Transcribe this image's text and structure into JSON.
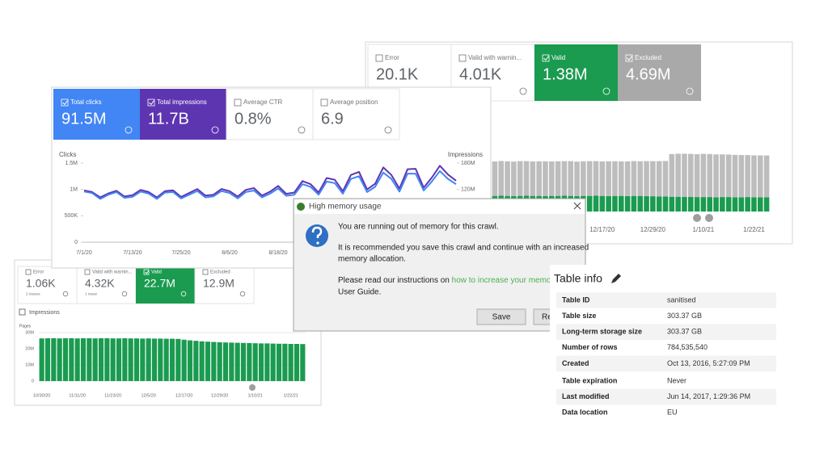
{
  "index_coverage": {
    "tabs": [
      {
        "label": "Error",
        "value": "20.1K"
      },
      {
        "label": "Valid with warnin...",
        "value": "4.01K"
      },
      {
        "label": "Valid",
        "value": "1.38M",
        "color": "#1a9b50"
      },
      {
        "label": "Excluded",
        "value": "4.69M",
        "color": "#a9a9a9"
      }
    ],
    "chart": {
      "type": "bar",
      "categories": [
        null,
        null,
        null,
        null,
        null,
        null,
        null,
        null,
        null,
        null,
        null,
        null,
        null,
        null,
        null,
        null,
        null,
        "12/17/20",
        null,
        null,
        null,
        null,
        null,
        null,
        null,
        "12/29/20",
        null,
        null,
        null,
        null,
        null,
        null,
        null,
        "1/10/21",
        null,
        null,
        null,
        null,
        null,
        null,
        null,
        "1/22/21",
        null,
        null
      ],
      "series": [
        {
          "color": "#1a9b50",
          "values": [
            0.95,
            0.96,
            0.95,
            0.94,
            0.95,
            0.96,
            0.95,
            0.95,
            0.94,
            0.95,
            0.95,
            0.96,
            0.95,
            0.94,
            0.95,
            0.95,
            0.96,
            0.95,
            0.94,
            0.95,
            0.95,
            0.94,
            0.95,
            0.95,
            0.94,
            0.93,
            0.92,
            0.92,
            0.9,
            0.9,
            0.89,
            0.89,
            0.88,
            0.88,
            0.88,
            0.87,
            0.88,
            0.88,
            0.87,
            0.87,
            0.88,
            0.87,
            0.87,
            0.87
          ]
        },
        {
          "color": "#bdbdbd",
          "values": [
            2.1,
            2.12,
            2.11,
            2.1,
            2.12,
            2.11,
            2.1,
            2.11,
            2.12,
            2.1,
            2.11,
            2.11,
            2.12,
            2.1,
            2.11,
            2.12,
            2.11,
            2.1,
            2.12,
            2.11,
            2.1,
            2.11,
            2.12,
            2.11,
            2.13,
            2.14,
            2.15,
            2.16,
            2.6,
            2.62,
            2.63,
            2.62,
            2.61,
            2.63,
            2.62,
            2.61,
            2.6,
            2.59,
            2.58,
            2.57,
            2.56,
            2.55,
            2.55,
            2.54
          ]
        }
      ],
      "ylim": [
        0,
        6
      ]
    }
  },
  "coverage_small": {
    "tabs": [
      {
        "label": "Error",
        "value": "1.06K",
        "detail": "2 issues"
      },
      {
        "label": "Valid with warnin...",
        "value": "4.32K",
        "detail": "1 issue"
      },
      {
        "label": "Valid",
        "value": "22.7M",
        "color": "#1a9b50"
      },
      {
        "label": "Excluded",
        "value": "12.9M"
      }
    ],
    "checkbox": "Impressions",
    "chart": {
      "type": "bar",
      "y_label": "Pages",
      "categories": [
        "10/30/20",
        null,
        null,
        null,
        null,
        null,
        "11/11/20",
        null,
        null,
        null,
        null,
        null,
        "11/23/20",
        null,
        null,
        null,
        null,
        null,
        "12/5/20",
        null,
        null,
        null,
        null,
        null,
        "12/17/20",
        null,
        null,
        null,
        null,
        null,
        "12/29/20",
        null,
        null,
        null,
        null,
        null,
        "1/10/21",
        null,
        null,
        null,
        null,
        null,
        "1/22/21",
        null,
        null
      ],
      "values": [
        26.4,
        26.5,
        26.5,
        26.4,
        26.5,
        26.5,
        26.4,
        26.5,
        26.5,
        26.4,
        26.5,
        26.5,
        26.4,
        26.4,
        26.5,
        26.4,
        26.4,
        26.3,
        26.4,
        26.3,
        26.3,
        26.2,
        26.2,
        26.1,
        25.6,
        25.2,
        24.9,
        24.6,
        24.4,
        24.2,
        24.0,
        23.9,
        23.8,
        23.7,
        23.6,
        23.5,
        23.4,
        23.3,
        23.3,
        23.2,
        23.1,
        23.1,
        23.0,
        23.0,
        22.9
      ],
      "color": "#1a9b50",
      "ylim": [
        0,
        30
      ],
      "yticks": [
        0,
        {
          "value": 10,
          "label": "10M"
        },
        {
          "value": 20,
          "label": "20M"
        },
        {
          "value": 30,
          "label": "30M"
        }
      ],
      "grid": true
    }
  },
  "performance": {
    "tabs": [
      {
        "label": "Total clicks",
        "value": "91.5M",
        "color": "#4285f4"
      },
      {
        "label": "Total impressions",
        "value": "11.7B",
        "color": "#5e35b1"
      },
      {
        "label": "Average CTR",
        "value": "0.8%"
      },
      {
        "label": "Average position",
        "value": "6.9"
      }
    ],
    "chart": {
      "type": "line",
      "y_label": "Clicks",
      "y2_label": "Impressions",
      "categories": [
        "7/1/20",
        null,
        null,
        null,
        null,
        null,
        "7/13/20",
        null,
        null,
        null,
        null,
        null,
        "7/25/20",
        null,
        null,
        null,
        null,
        null,
        "8/6/20",
        null,
        null,
        null,
        null,
        null,
        "8/18/20",
        null,
        null,
        null,
        null,
        null,
        null,
        null,
        null,
        null,
        null,
        null,
        null,
        null,
        null,
        null,
        null,
        null,
        null,
        null,
        null,
        null,
        null
      ],
      "series": [
        {
          "color": "#4285f4",
          "values": [
            0.96,
            0.93,
            0.82,
            0.9,
            0.95,
            0.84,
            0.86,
            0.96,
            0.92,
            0.82,
            0.94,
            0.95,
            0.83,
            0.9,
            0.97,
            0.85,
            0.87,
            0.97,
            0.93,
            0.83,
            0.95,
            0.98,
            0.85,
            0.92,
            1.02,
            0.88,
            0.9,
            1.1,
            1.05,
            0.9,
            1.15,
            1.12,
            0.92,
            1.2,
            1.25,
            0.95,
            1.05,
            1.32,
            1.2,
            0.96,
            1.3,
            1.3,
            0.98,
            1.15,
            1.35,
            1.2,
            1.1
          ]
        },
        {
          "color": "#5e35b1",
          "axis": "y2",
          "values": [
            118,
            114,
            102,
            111,
            117,
            104,
            107,
            119,
            114,
            102,
            116,
            118,
            103,
            112,
            121,
            106,
            108,
            121,
            116,
            104,
            119,
            123,
            106,
            115,
            128,
            110,
            113,
            139,
            132,
            113,
            146,
            142,
            116,
            153,
            160,
            120,
            133,
            170,
            153,
            122,
            166,
            167,
            124,
            147,
            174,
            154,
            140
          ]
        }
      ],
      "ylim": [
        0,
        1.5
      ],
      "yticks": [
        0,
        {
          "value": 0.5,
          "label": "500K"
        },
        {
          "value": 1,
          "label": "1M"
        },
        {
          "value": 1.5,
          "label": "1.5M"
        }
      ],
      "y2lim": [
        0,
        180
      ],
      "y2ticks": [
        {
          "value": 120,
          "label": "120M"
        },
        {
          "value": 180,
          "label": "180M"
        }
      ]
    }
  },
  "dialog": {
    "title": "High memory usage",
    "message": "You are running out of memory for this crawl.",
    "detail_1": "It is recommended you save this crawl and continue with an increased",
    "detail_2": "memory allocation.",
    "instructions": "Please read our instructions on ",
    "link": "how to increase your memory",
    "instructions_end": "User Guide.",
    "buttons": [
      "Save",
      "Re"
    ]
  },
  "table_info": {
    "title": "Table info",
    "rows": [
      [
        "Table ID",
        "sanitised"
      ],
      [
        "Table size",
        "303.37 GB"
      ],
      [
        "Long-term storage size",
        "303.37 GB"
      ],
      [
        "Number of rows",
        "784,535,540"
      ],
      [
        "Created",
        "Oct 13, 2016, 5:27:09 PM"
      ],
      [
        "Table expiration",
        "Never"
      ],
      [
        "Last modified",
        "Jun 14, 2017, 1:29:36 PM"
      ],
      [
        "Data location",
        "EU"
      ]
    ]
  }
}
